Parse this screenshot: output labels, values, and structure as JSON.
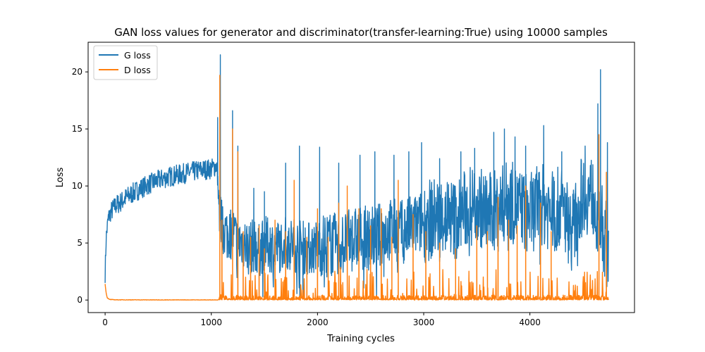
{
  "chart_data": {
    "type": "line",
    "title": "GAN loss values for generator and discriminator(transfer-learning:True) using 10000 samples",
    "xlabel": "Training cycles",
    "ylabel": "Loss",
    "xlim": [
      -160,
      4985
    ],
    "ylim": [
      -1.1,
      22.6
    ],
    "xticks": [
      0,
      1000,
      2000,
      3000,
      4000
    ],
    "xtick_labels": [
      "0",
      "1000",
      "2000",
      "3000",
      "4000"
    ],
    "yticks": [
      0,
      5,
      10,
      15,
      20
    ],
    "ytick_labels": [
      "0",
      "5",
      "10",
      "15",
      "20"
    ],
    "grid": false,
    "legend_position": "top-left",
    "series": [
      {
        "name": "G loss",
        "color": "#1f77b4",
        "x": [
          0,
          10,
          30,
          60,
          100,
          150,
          200,
          300,
          400,
          500,
          600,
          700,
          800,
          900,
          1000,
          1050,
          1070,
          1080,
          1100,
          1150,
          1200,
          1250,
          1300,
          1350,
          1400,
          1450,
          1500,
          1600,
          1700,
          1800,
          1900,
          2000,
          2100,
          2200,
          2300,
          2400,
          2500,
          2600,
          2700,
          2800,
          2900,
          3000,
          3100,
          3200,
          3300,
          3400,
          3500,
          3600,
          3700,
          3800,
          3900,
          4000,
          4100,
          4200,
          4300,
          4400,
          4500,
          4600,
          4650,
          4670,
          4700,
          4740
        ],
        "y": [
          2.3,
          5.5,
          7.2,
          7.8,
          8.3,
          8.6,
          9.0,
          9.6,
          10.1,
          10.5,
          10.8,
          11.0,
          11.2,
          11.4,
          11.5,
          11.8,
          9.0,
          7.5,
          6.5,
          5.8,
          6.0,
          5.0,
          5.2,
          4.5,
          4.8,
          4.3,
          5.0,
          4.6,
          5.0,
          4.8,
          4.5,
          4.7,
          5.0,
          4.8,
          5.2,
          5.5,
          5.4,
          5.8,
          6.2,
          6.0,
          6.5,
          6.8,
          7.2,
          7.5,
          7.0,
          8.0,
          8.5,
          7.5,
          8.0,
          8.8,
          8.0,
          7.5,
          8.5,
          7.8,
          8.2,
          6.0,
          9.5,
          9.0,
          6.5,
          7.0,
          5.5,
          5.0
        ],
        "peaks": [
          [
            1060,
            16.0
          ],
          [
            1085,
            21.5
          ],
          [
            1200,
            16.6
          ],
          [
            1250,
            13.5
          ],
          [
            1400,
            9.8
          ],
          [
            1500,
            9.5
          ],
          [
            1700,
            12.0
          ],
          [
            1830,
            13.5
          ],
          [
            2020,
            13.4
          ],
          [
            2200,
            12.0
          ],
          [
            2400,
            12.7
          ],
          [
            2540,
            13.0
          ],
          [
            2720,
            12.7
          ],
          [
            2860,
            13.0
          ],
          [
            2980,
            13.8
          ],
          [
            3150,
            12.4
          ],
          [
            3350,
            13.0
          ],
          [
            3480,
            13.3
          ],
          [
            3660,
            14.7
          ],
          [
            3760,
            15.0
          ],
          [
            3860,
            14.3
          ],
          [
            3960,
            13.5
          ],
          [
            4130,
            15.3
          ],
          [
            4300,
            13.0
          ],
          [
            4520,
            13.5
          ],
          [
            4640,
            17.2
          ],
          [
            4665,
            20.2
          ],
          [
            4730,
            13.8
          ]
        ]
      },
      {
        "name": "D loss",
        "color": "#ff7f0e",
        "x": [
          0,
          10,
          20,
          40,
          100,
          500,
          1000,
          1070,
          4740
        ],
        "y": [
          1.4,
          0.6,
          0.2,
          0.05,
          0.02,
          0.01,
          0.01,
          0.02,
          0.1
        ],
        "peaks": [
          [
            1080,
            19.7
          ],
          [
            1100,
            7.0
          ],
          [
            1200,
            15.0
          ],
          [
            1250,
            13.0
          ],
          [
            1300,
            6.0
          ],
          [
            1370,
            5.5
          ],
          [
            1450,
            6.5
          ],
          [
            1500,
            4.5
          ],
          [
            1600,
            7.0
          ],
          [
            1700,
            6.0
          ],
          [
            1780,
            10.5
          ],
          [
            1900,
            5.5
          ],
          [
            2000,
            8.0
          ],
          [
            2100,
            5.5
          ],
          [
            2200,
            8.5
          ],
          [
            2280,
            10.0
          ],
          [
            2390,
            8.0
          ],
          [
            2500,
            6.5
          ],
          [
            2600,
            8.0
          ],
          [
            2700,
            5.5
          ],
          [
            2760,
            10.5
          ],
          [
            2900,
            7.5
          ],
          [
            3020,
            6.0
          ],
          [
            3150,
            5.0
          ],
          [
            3300,
            4.5
          ],
          [
            3500,
            6.5
          ],
          [
            3600,
            6.0
          ],
          [
            3700,
            9.0
          ],
          [
            3800,
            7.0
          ],
          [
            3880,
            6.5
          ],
          [
            3960,
            10.0
          ],
          [
            4100,
            8.5
          ],
          [
            4200,
            6.0
          ],
          [
            4650,
            14.5
          ],
          [
            4720,
            11.2
          ]
        ]
      }
    ]
  }
}
